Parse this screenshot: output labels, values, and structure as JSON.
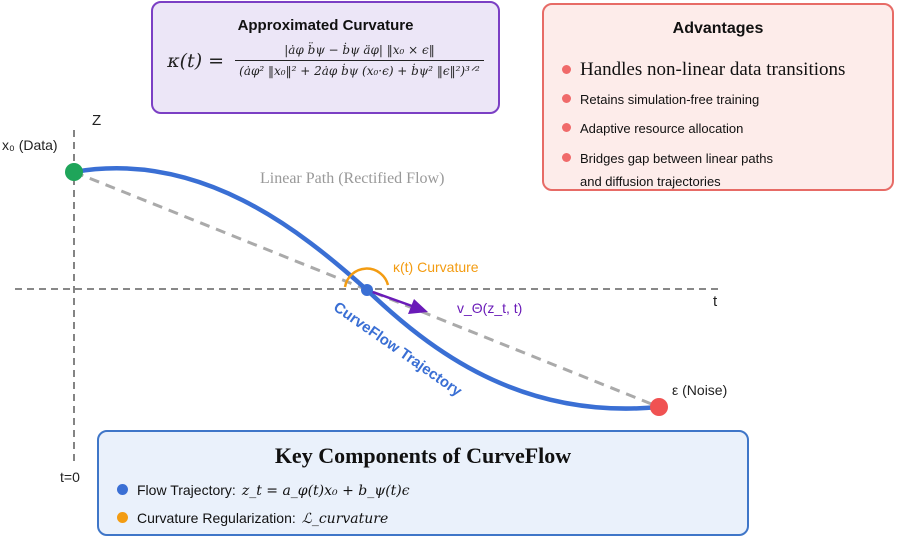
{
  "colors": {
    "curve": "#3a6fd4",
    "linear": "#aaaaaa",
    "axis": "#777777",
    "data_point": "#1fa55a",
    "noise_point": "#f05252",
    "velocity": "#6a1bb8",
    "curvature": "#f39c12"
  },
  "curvature_box": {
    "title": "Approximated Curvature",
    "lhs": "κ(t) =",
    "numerator": "|ȧφ b̈ψ − ḃψ äφ| ‖x₀ × ϵ‖",
    "denominator": "(ȧφ² ‖x₀‖² + 2ȧφ ḃψ (x₀·ϵ) + ḃψ² ‖ϵ‖²)³ᐟ²"
  },
  "advantages": {
    "title": "Advantages",
    "items": [
      "Handles non-linear data transitions",
      "Retains simulation-free training",
      "Adaptive resource allocation",
      "Bridges gap between linear paths",
      "and diffusion trajectories"
    ]
  },
  "diagram": {
    "z_axis_label": "Z",
    "t_axis_label": "t",
    "t0_label": "t=0",
    "data_label": "x₀ (Data)",
    "noise_label": "ε (Noise)",
    "linear_path_label": "Linear Path (Rectified Flow)",
    "curvature_label": "κ(t) Curvature",
    "velocity_label": "v_Θ(z_t, t)",
    "trajectory_label": "CurveFlow Trajectory"
  },
  "key_components": {
    "title": "Key Components of CurveFlow",
    "rows": [
      {
        "label": "Flow Trajectory:",
        "math": "z_t = a_φ(t)x₀ + b_ψ(t)ϵ",
        "color": "#3a6fd4"
      },
      {
        "label": "Curvature Regularization:",
        "math": "ℒ_curvature",
        "color": "#f39c12"
      }
    ]
  }
}
